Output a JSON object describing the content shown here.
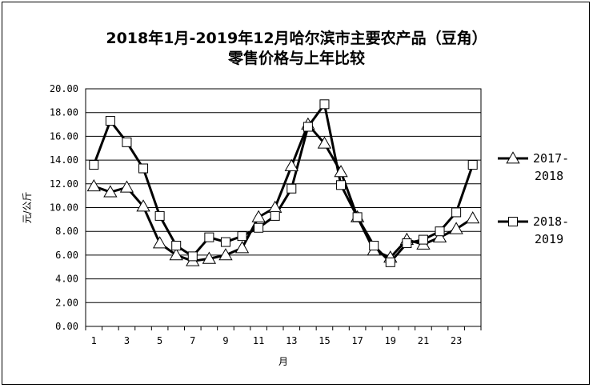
{
  "chart_data": {
    "type": "line",
    "title_line1": "2018年1月-2019年12月哈尔滨市主要农产品（豆角）",
    "title_line2": "零售价格与上年比较",
    "xlabel": "月",
    "ylabel": "元/公斤",
    "ylim": [
      0,
      20
    ],
    "yticks": [
      "0.00",
      "2.00",
      "4.00",
      "6.00",
      "8.00",
      "10.00",
      "12.00",
      "14.00",
      "16.00",
      "18.00",
      "20.00"
    ],
    "xticks": [
      "1",
      "3",
      "5",
      "7",
      "9",
      "11",
      "13",
      "15",
      "17",
      "19",
      "21",
      "23"
    ],
    "x": [
      1,
      2,
      3,
      4,
      5,
      6,
      7,
      8,
      9,
      10,
      11,
      12,
      13,
      14,
      15,
      16,
      17,
      18,
      19,
      20,
      21,
      22,
      23,
      24
    ],
    "grid": "horizontal",
    "legend_position": "right",
    "series": [
      {
        "name": "2017-2018",
        "legend_line1": "2017-",
        "legend_line2": "2018",
        "marker": "triangle",
        "values": [
          11.8,
          11.3,
          11.7,
          10.1,
          7.0,
          6.0,
          5.5,
          5.7,
          6.0,
          6.6,
          9.2,
          10.0,
          13.5,
          17.0,
          15.4,
          13.0,
          9.2,
          6.4,
          5.8,
          7.3,
          6.9,
          7.5,
          8.2,
          9.1
        ],
        "color": "#000000"
      },
      {
        "name": "2018-2019",
        "legend_line1": "2018-",
        "legend_line2": "2019",
        "marker": "square",
        "values": [
          13.6,
          17.3,
          15.5,
          13.3,
          9.3,
          6.8,
          5.9,
          7.5,
          7.1,
          7.6,
          8.3,
          9.3,
          11.6,
          16.8,
          18.7,
          11.9,
          9.2,
          6.8,
          5.4,
          7.0,
          7.3,
          8.0,
          9.6,
          13.6
        ],
        "color": "#000000"
      }
    ]
  }
}
